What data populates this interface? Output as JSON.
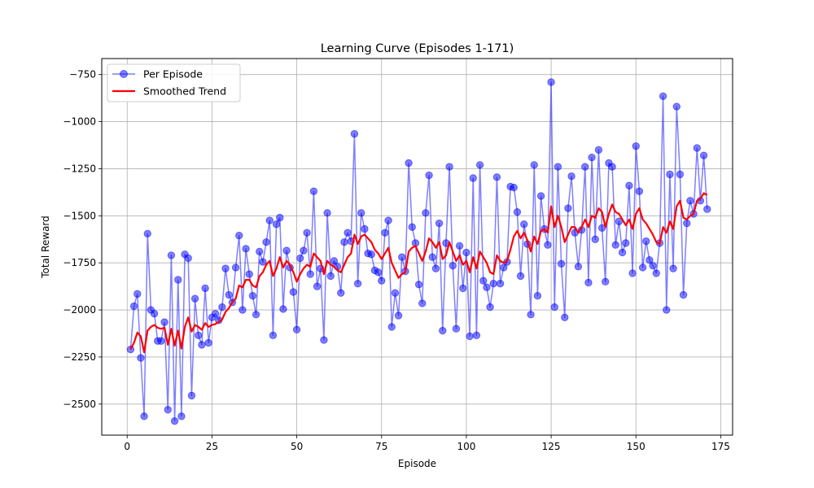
{
  "chart_data": {
    "type": "line",
    "title": "Learning Curve (Episodes 1-171)",
    "xlabel": "Episode",
    "ylabel": "Total Reward",
    "xlim": [
      -7.5,
      178.5
    ],
    "ylim": [
      -2665,
      -665
    ],
    "xticks": [
      0,
      25,
      50,
      75,
      100,
      125,
      150,
      175
    ],
    "yticks": [
      -750,
      -1000,
      -1250,
      -1500,
      -1750,
      -2000,
      -2250,
      -2500
    ],
    "grid": true,
    "legend_position": "top-left",
    "series": [
      {
        "name": "Per Episode",
        "color": "#0000ff",
        "style": "line-with-markers",
        "x": [
          1,
          2,
          3,
          4,
          5,
          6,
          7,
          8,
          9,
          10,
          11,
          12,
          13,
          14,
          15,
          16,
          17,
          18,
          19,
          20,
          21,
          22,
          23,
          24,
          25,
          26,
          27,
          28,
          29,
          30,
          31,
          32,
          33,
          34,
          35,
          36,
          37,
          38,
          39,
          40,
          41,
          42,
          43,
          44,
          45,
          46,
          47,
          48,
          49,
          50,
          51,
          52,
          53,
          54,
          55,
          56,
          57,
          58,
          59,
          60,
          61,
          62,
          63,
          64,
          65,
          66,
          67,
          68,
          69,
          70,
          71,
          72,
          73,
          74,
          75,
          76,
          77,
          78,
          79,
          80,
          81,
          82,
          83,
          84,
          85,
          86,
          87,
          88,
          89,
          90,
          91,
          92,
          93,
          94,
          95,
          96,
          97,
          98,
          99,
          100,
          101,
          102,
          103,
          104,
          105,
          106,
          107,
          108,
          109,
          110,
          111,
          112,
          113,
          114,
          115,
          116,
          117,
          118,
          119,
          120,
          121,
          122,
          123,
          124,
          125,
          126,
          127,
          128,
          129,
          130,
          131,
          132,
          133,
          134,
          135,
          136,
          137,
          138,
          139,
          140,
          141,
          142,
          143,
          144,
          145,
          146,
          147,
          148,
          149,
          150,
          151,
          152,
          153,
          154,
          155,
          156,
          157,
          158,
          159,
          160,
          161,
          162,
          163,
          164,
          165,
          166,
          167,
          168,
          169,
          170,
          171
        ],
        "y": [
          -2210,
          -1980,
          -1915,
          -2255,
          -2565,
          -1595,
          -2000,
          -2020,
          -2165,
          -2165,
          -2065,
          -2530,
          -1710,
          -2590,
          -1840,
          -2565,
          -1705,
          -1725,
          -2455,
          -1940,
          -2135,
          -2185,
          -1885,
          -2175,
          -2040,
          -2020,
          -2055,
          -1985,
          -1780,
          -1920,
          -1960,
          -1775,
          -1605,
          -2000,
          -1675,
          -1810,
          -1925,
          -2025,
          -1690,
          -1745,
          -1640,
          -1525,
          -2135,
          -1545,
          -1510,
          -1995,
          -1685,
          -1775,
          -1905,
          -2105,
          -1725,
          -1685,
          -1590,
          -1810,
          -1370,
          -1875,
          -1780,
          -2160,
          -1485,
          -1820,
          -1740,
          -1770,
          -1910,
          -1640,
          -1590,
          -1635,
          -1065,
          -1860,
          -1485,
          -1570,
          -1700,
          -1705,
          -1790,
          -1800,
          -1845,
          -1590,
          -1525,
          -2090,
          -1910,
          -2030,
          -1720,
          -1795,
          -1220,
          -1560,
          -1645,
          -1865,
          -1965,
          -1485,
          -1285,
          -1720,
          -1780,
          -1540,
          -2110,
          -1645,
          -1240,
          -1765,
          -2100,
          -1660,
          -1885,
          -1695,
          -2140,
          -1300,
          -2135,
          -1230,
          -1845,
          -1880,
          -1985,
          -1860,
          -1295,
          -1860,
          -1775,
          -1745,
          -1345,
          -1350,
          -1480,
          -1820,
          -1545,
          -1650,
          -2025,
          -1230,
          -1925,
          -1395,
          -1570,
          -1655,
          -790,
          -1985,
          -1240,
          -1755,
          -2040,
          -1460,
          -1290,
          -1590,
          -1770,
          -1575,
          -1240,
          -1855,
          -1190,
          -1625,
          -1150,
          -1565,
          -1850,
          -1220,
          -1240,
          -1655,
          -1530,
          -1695,
          -1645,
          -1340,
          -1805,
          -1130,
          -1370,
          -1775,
          -1635,
          -1735,
          -1765,
          -1805,
          -1645,
          -865,
          -2000,
          -1280,
          -1780,
          -920,
          -1280,
          -1920,
          -1540,
          -1420,
          -1490,
          -1140,
          -1420,
          -1180,
          -1465
        ]
      },
      {
        "name": "Smoothed Trend",
        "color": "#ff0000",
        "style": "line",
        "x": [
          1,
          2,
          3,
          4,
          5,
          6,
          7,
          8,
          9,
          10,
          11,
          12,
          13,
          14,
          15,
          16,
          17,
          18,
          19,
          20,
          21,
          22,
          23,
          24,
          25,
          26,
          27,
          28,
          29,
          30,
          31,
          32,
          33,
          34,
          35,
          36,
          37,
          38,
          39,
          40,
          41,
          42,
          43,
          44,
          45,
          46,
          47,
          48,
          49,
          50,
          51,
          52,
          53,
          54,
          55,
          56,
          57,
          58,
          59,
          60,
          61,
          62,
          63,
          64,
          65,
          66,
          67,
          68,
          69,
          70,
          71,
          72,
          73,
          74,
          75,
          76,
          77,
          78,
          79,
          80,
          81,
          82,
          83,
          84,
          85,
          86,
          87,
          88,
          89,
          90,
          91,
          92,
          93,
          94,
          95,
          96,
          97,
          98,
          99,
          100,
          101,
          102,
          103,
          104,
          105,
          106,
          107,
          108,
          109,
          110,
          111,
          112,
          113,
          114,
          115,
          116,
          117,
          118,
          119,
          120,
          121,
          122,
          123,
          124,
          125,
          126,
          127,
          128,
          129,
          130,
          131,
          132,
          133,
          134,
          135,
          136,
          137,
          138,
          139,
          140,
          141,
          142,
          143,
          144,
          145,
          146,
          147,
          148,
          149,
          150,
          151,
          152,
          153,
          154,
          155,
          156,
          157,
          158,
          159,
          160,
          161,
          162,
          163,
          164,
          165,
          166,
          167,
          168,
          169,
          170,
          171
        ],
        "y": [
          -2210,
          -2175,
          -2120,
          -2140,
          -2225,
          -2110,
          -2090,
          -2080,
          -2095,
          -2100,
          -2095,
          -2185,
          -2100,
          -2190,
          -2110,
          -2205,
          -2090,
          -2040,
          -2115,
          -2080,
          -2090,
          -2105,
          -2070,
          -2090,
          -2080,
          -2075,
          -2065,
          -2050,
          -2010,
          -1990,
          -1960,
          -1940,
          -1870,
          -1880,
          -1840,
          -1840,
          -1870,
          -1880,
          -1820,
          -1800,
          -1760,
          -1740,
          -1820,
          -1780,
          -1720,
          -1775,
          -1740,
          -1760,
          -1800,
          -1850,
          -1810,
          -1780,
          -1760,
          -1770,
          -1700,
          -1720,
          -1740,
          -1810,
          -1740,
          -1760,
          -1770,
          -1790,
          -1800,
          -1760,
          -1720,
          -1700,
          -1600,
          -1650,
          -1610,
          -1600,
          -1620,
          -1640,
          -1680,
          -1700,
          -1730,
          -1700,
          -1670,
          -1750,
          -1790,
          -1830,
          -1810,
          -1800,
          -1690,
          -1670,
          -1660,
          -1700,
          -1740,
          -1690,
          -1620,
          -1640,
          -1670,
          -1640,
          -1730,
          -1710,
          -1640,
          -1690,
          -1740,
          -1710,
          -1760,
          -1740,
          -1800,
          -1720,
          -1780,
          -1690,
          -1720,
          -1750,
          -1800,
          -1810,
          -1710,
          -1740,
          -1750,
          -1740,
          -1680,
          -1610,
          -1580,
          -1620,
          -1590,
          -1630,
          -1690,
          -1610,
          -1650,
          -1580,
          -1570,
          -1590,
          -1450,
          -1560,
          -1500,
          -1560,
          -1640,
          -1600,
          -1560,
          -1560,
          -1590,
          -1560,
          -1520,
          -1560,
          -1500,
          -1510,
          -1460,
          -1480,
          -1560,
          -1490,
          -1440,
          -1480,
          -1490,
          -1520,
          -1550,
          -1520,
          -1570,
          -1490,
          -1460,
          -1520,
          -1540,
          -1570,
          -1600,
          -1640,
          -1650,
          -1560,
          -1590,
          -1530,
          -1570,
          -1450,
          -1420,
          -1510,
          -1520,
          -1500,
          -1490,
          -1420,
          -1410,
          -1380,
          -1390
        ]
      }
    ]
  }
}
